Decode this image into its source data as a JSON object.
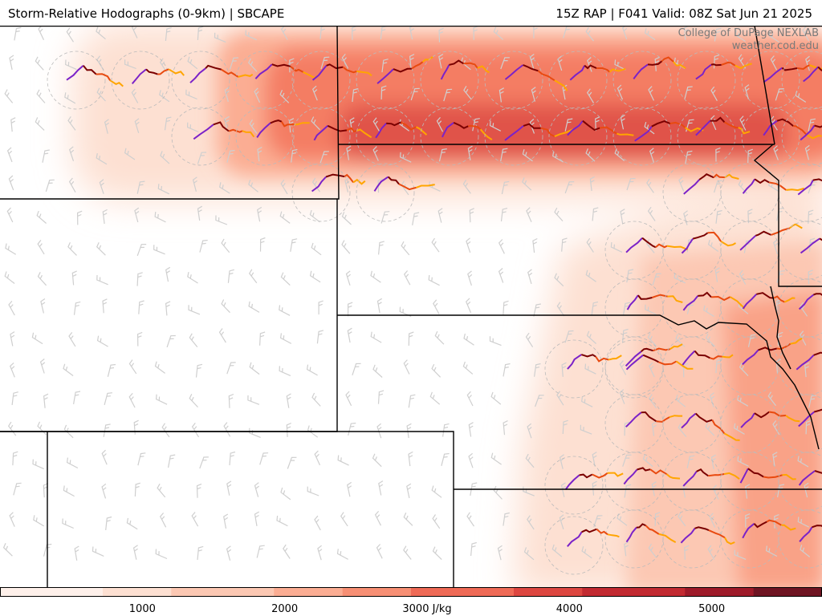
{
  "header": {
    "title_left": "Storm-Relative Hodographs (0-9km) | SBCAPE",
    "title_right": "15Z RAP | F041 Valid: 08Z Sat Jun 21 2025"
  },
  "credit": {
    "line1": "College of DuPage NEXLAB",
    "line2": "weather.cod.edu"
  },
  "colors": {
    "cape_scale": [
      "#fef0ea",
      "#fde0d2",
      "#fcc8b3",
      "#fbad93",
      "#f78f74",
      "#ef6a56",
      "#dd4640",
      "#c22a31",
      "#9e1a29",
      "#6e1422"
    ],
    "hodo_segments": [
      "#7b22c8",
      "#7a0000",
      "#e84a10",
      "#ffa500"
    ],
    "borders": "#000000",
    "barbs": "#cfcfcf"
  },
  "colorbar": {
    "min": 0,
    "max": 6000,
    "ticks": [
      {
        "value": 1000,
        "label": "1000"
      },
      {
        "value": 2000,
        "label": "2000"
      },
      {
        "value": 3000,
        "label": "3000 J/kg"
      },
      {
        "value": 4000,
        "label": "4000"
      },
      {
        "value": 5000,
        "label": "5000"
      }
    ]
  }
}
